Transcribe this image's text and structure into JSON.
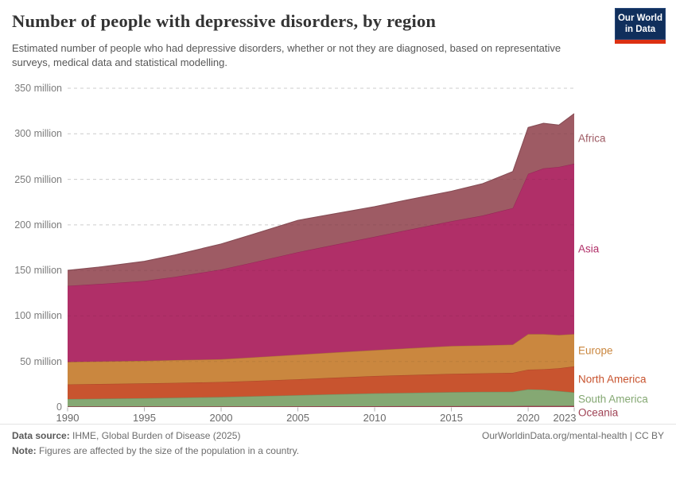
{
  "logo": {
    "line1": "Our World",
    "line2": "in Data"
  },
  "chart_data": {
    "type": "area",
    "stacked": true,
    "title": "Number of people with depressive disorders, by region",
    "subtitle": "Estimated number of people who had depressive disorders, whether or not they are diagnosed, based on representative surveys, medical data and statistical modelling.",
    "unit": "million people",
    "xlim": [
      1990,
      2023
    ],
    "ylim": [
      0,
      350
    ],
    "grid": "dashed horizontal gridlines",
    "legend_position": "labels at right edge of chart",
    "stack_order": "bottom-to-top",
    "x": [
      1990,
      1992,
      1995,
      1997,
      2000,
      2002,
      2005,
      2007,
      2010,
      2012,
      2015,
      2017,
      2019,
      2020,
      2021,
      2022,
      2023
    ],
    "series": [
      {
        "name": "Oceania",
        "color": "#a04456",
        "values": [
          0.6,
          0.62,
          0.65,
          0.67,
          0.7,
          0.74,
          0.8,
          0.84,
          0.9,
          0.94,
          1.0,
          1.05,
          1.1,
          1.2,
          1.2,
          1.25,
          1.3
        ]
      },
      {
        "name": "South America",
        "color": "#85a873",
        "values": [
          8.1,
          8.5,
          9.0,
          9.5,
          10.3,
          11.0,
          12.2,
          13.0,
          14.1,
          14.6,
          15.3,
          15.6,
          15.7,
          18.3,
          17.8,
          16.3,
          14.8
        ]
      },
      {
        "name": "North America",
        "color": "#c8542f",
        "values": [
          16.1,
          16.2,
          16.3,
          16.4,
          16.5,
          16.9,
          17.5,
          18.1,
          19.0,
          19.5,
          20.2,
          20.4,
          20.7,
          21.5,
          22.5,
          25.0,
          28.5
        ]
      },
      {
        "name": "Europe",
        "color": "#ca873f",
        "values": [
          24.7,
          24.7,
          24.8,
          24.9,
          25.0,
          25.8,
          27.0,
          27.6,
          28.5,
          29.3,
          30.5,
          30.6,
          31.0,
          39.0,
          38.5,
          36.5,
          35.5
        ]
      },
      {
        "name": "Asia",
        "color": "#b02f68",
        "values": [
          83.5,
          85.0,
          87.7,
          91.5,
          98.5,
          104.0,
          112.5,
          117.3,
          124.5,
          129.5,
          137.0,
          142.4,
          150.0,
          176.0,
          182.0,
          184.5,
          187.1
        ]
      },
      {
        "name": "Africa",
        "color": "#9e5b64",
        "values": [
          17.0,
          18.5,
          21.5,
          24.0,
          28.0,
          30.8,
          35.0,
          34.2,
          33.0,
          33.2,
          33.0,
          35.0,
          40.0,
          51.0,
          49.5,
          46.0,
          55.0
        ]
      }
    ],
    "y_ticks": [
      {
        "value": 0,
        "label": "0"
      },
      {
        "value": 50,
        "label": "50 million"
      },
      {
        "value": 100,
        "label": "100 million"
      },
      {
        "value": 150,
        "label": "150 million"
      },
      {
        "value": 200,
        "label": "200 million"
      },
      {
        "value": 250,
        "label": "250 million"
      },
      {
        "value": 300,
        "label": "300 million"
      },
      {
        "value": 350,
        "label": "350 million"
      }
    ],
    "x_ticks": [
      {
        "value": 1990,
        "label": "1990"
      },
      {
        "value": 1995,
        "label": "1995"
      },
      {
        "value": 2000,
        "label": "2000"
      },
      {
        "value": 2005,
        "label": "2005"
      },
      {
        "value": 2010,
        "label": "2010"
      },
      {
        "value": 2015,
        "label": "2015"
      },
      {
        "value": 2020,
        "label": "2020"
      },
      {
        "value": 2023,
        "label": "2023"
      }
    ]
  },
  "footer": {
    "datasource_label": "Data source:",
    "datasource": " IHME, Global Burden of Disease (2025)",
    "note_label": "Note:",
    "note": " Figures are affected by the size of the population in a country.",
    "link": "OurWorldinData.org/mental-health | CC BY"
  }
}
